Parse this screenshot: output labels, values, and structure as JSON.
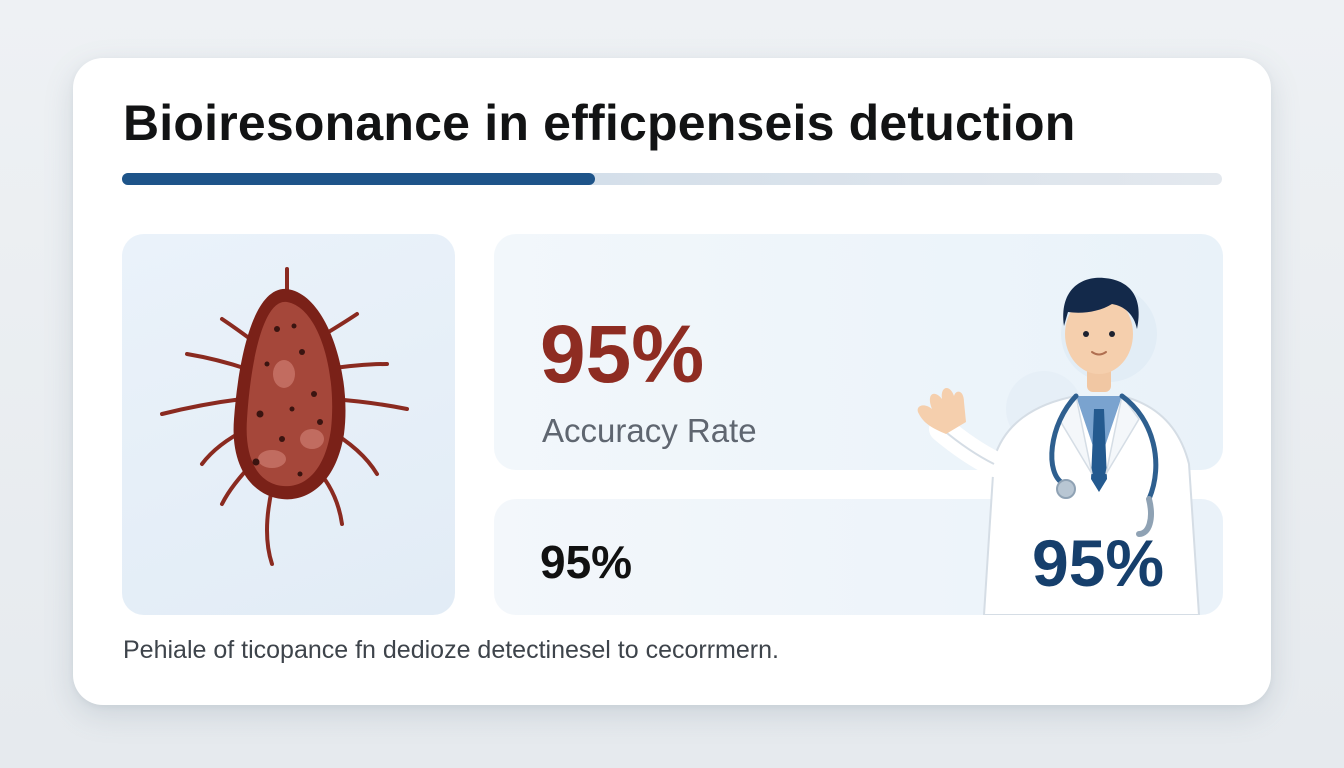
{
  "header": {
    "title": "Bioiresonance in efficpenseis detuction",
    "progress_fraction": 0.43
  },
  "illustration": {
    "icon": "bacterium-icon"
  },
  "stats": {
    "main_value": "95%",
    "main_label": "Accuracy Rate",
    "secondary_value": "95%",
    "doctor_value": "95%"
  },
  "doctor": {
    "icon": "doctor-icon"
  },
  "caption": "Pehiale of ticopance fn dedioze detectinesel to cecorrmern.",
  "colors": {
    "accent_blue": "#1e5489",
    "accent_red": "#8e2c22",
    "doctor_stat": "#163f6c"
  }
}
